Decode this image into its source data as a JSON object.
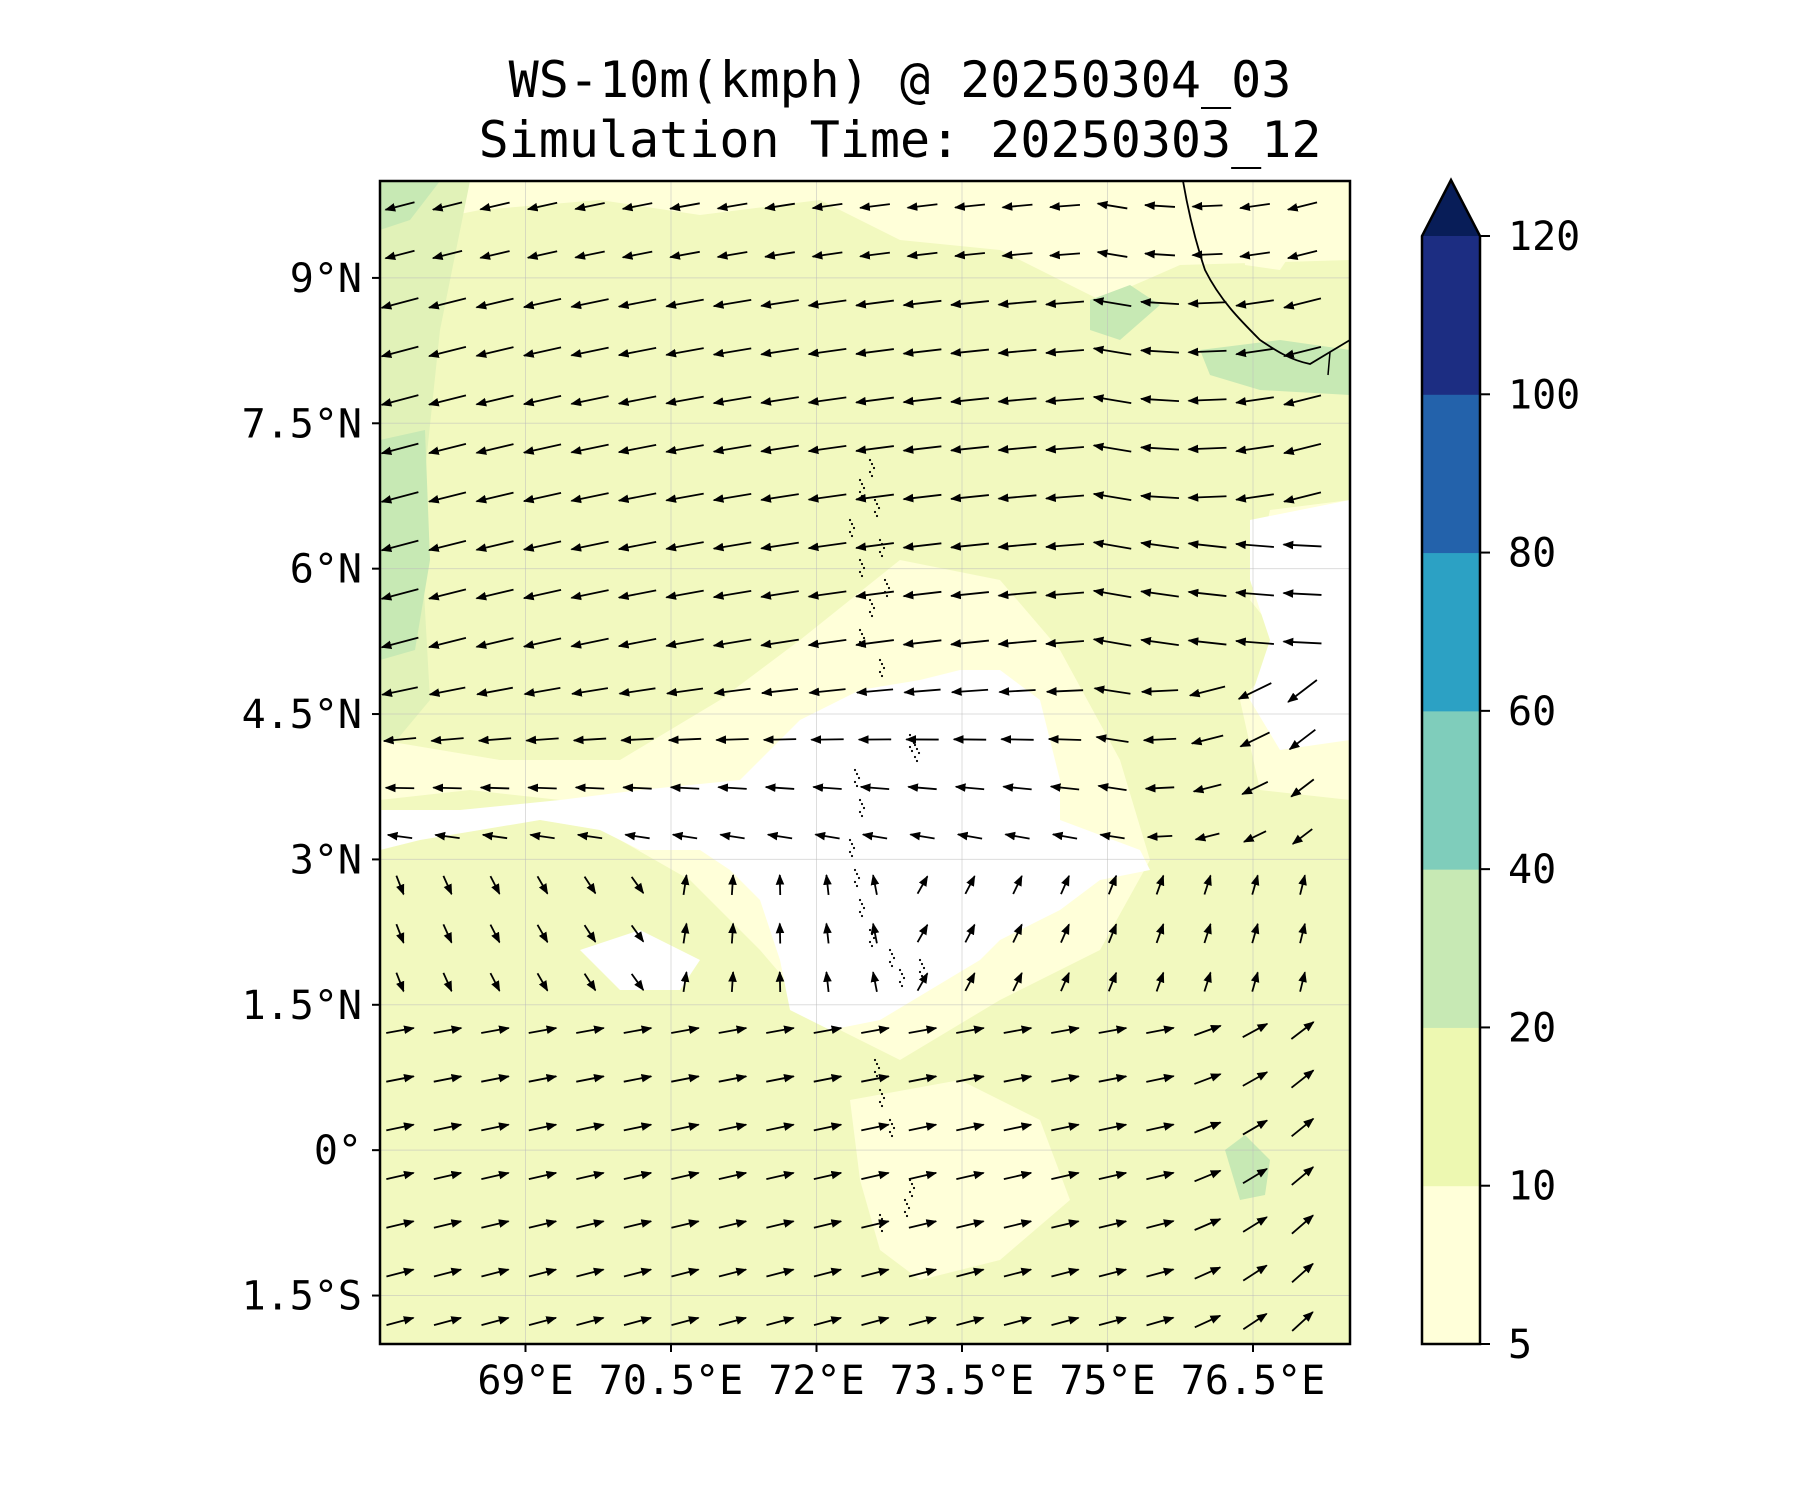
{
  "title": "WS-10m(kmph) @ 20250304_03",
  "subtitle": "Simulation Time: 20250303_12",
  "map": {
    "lon_range": [
      67.5,
      77.5
    ],
    "lat_range": [
      -2.0,
      10.0
    ],
    "lat_ticks": [
      {
        "value": 9.0,
        "label": "9°N"
      },
      {
        "value": 7.5,
        "label": "7.5°N"
      },
      {
        "value": 6.0,
        "label": "6°N"
      },
      {
        "value": 4.5,
        "label": "4.5°N"
      },
      {
        "value": 3.0,
        "label": "3°N"
      },
      {
        "value": 1.5,
        "label": "1.5°N"
      },
      {
        "value": 0.0,
        "label": "0°"
      },
      {
        "value": -1.5,
        "label": "1.5°S"
      }
    ],
    "lon_ticks": [
      {
        "value": 69.0,
        "label": "69°E"
      },
      {
        "value": 70.5,
        "label": "70.5°E"
      },
      {
        "value": 72.0,
        "label": "72°E"
      },
      {
        "value": 73.5,
        "label": "73.5°E"
      },
      {
        "value": 75.0,
        "label": "75°E"
      },
      {
        "value": 76.5,
        "label": "76.5°E"
      }
    ],
    "gridlines": true
  },
  "colorbar": {
    "levels": [
      5,
      10,
      20,
      40,
      60,
      80,
      100,
      120
    ],
    "colors": [
      "#ffffd9",
      "#edf8b1",
      "#c7e9b4",
      "#7fcdbb",
      "#2ca1c4",
      "#2362ab",
      "#1c2d82"
    ],
    "extend_color": "#081d58",
    "extend": "max"
  },
  "colors": {
    "background": "#ffffff",
    "calm": "#ffffff",
    "light": "#ffffd9",
    "moderate": "#f2f9bf",
    "fresh": "#e1f2b8",
    "strong": "#c7e9b4",
    "arrow": "#000000",
    "coast": "#000000"
  }
}
